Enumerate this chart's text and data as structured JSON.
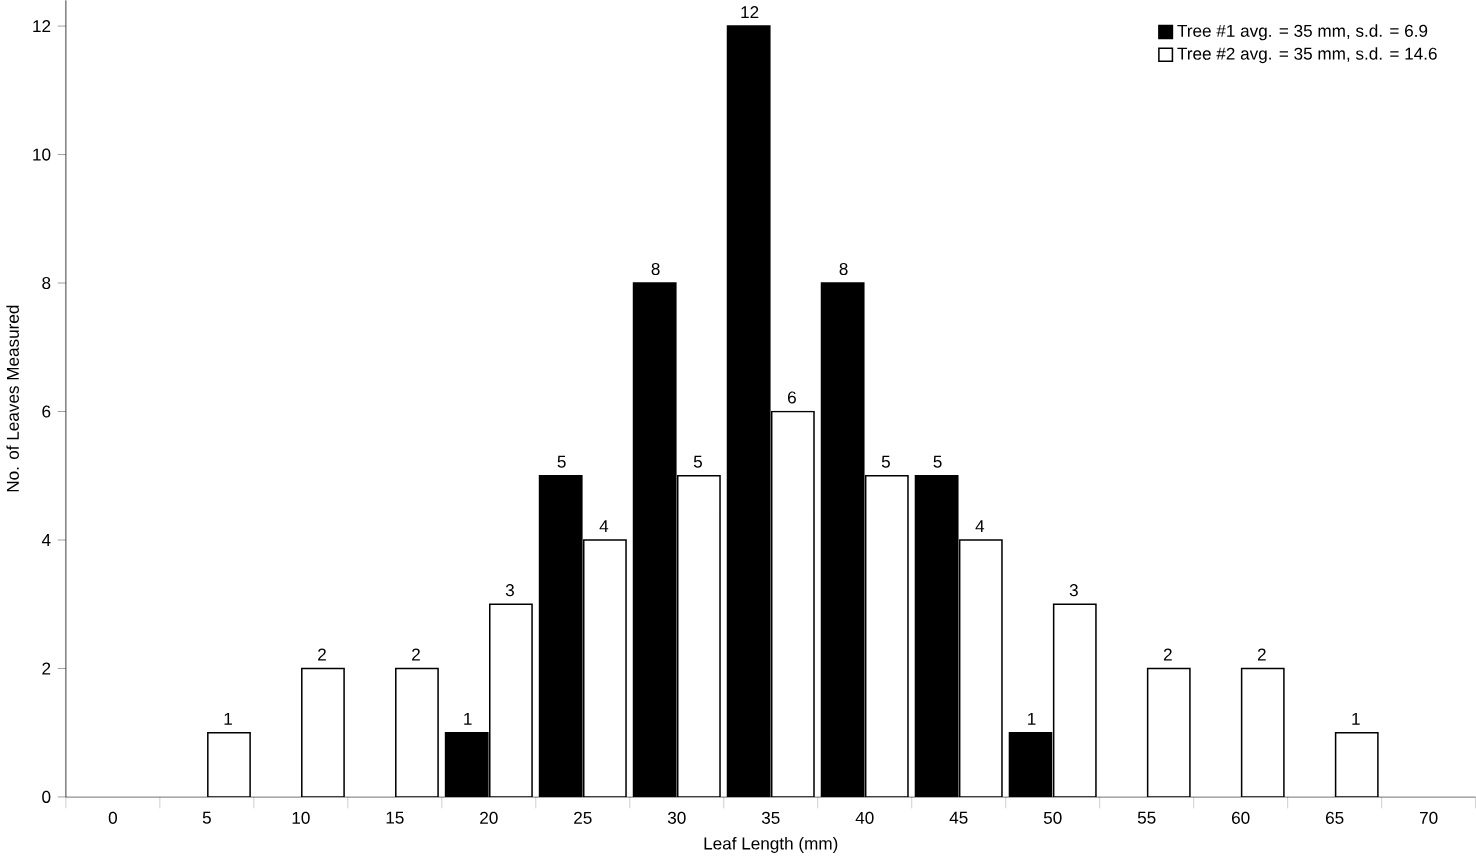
{
  "chart_data": {
    "type": "bar",
    "xlabel": "Leaf Length (mm)",
    "ylabel": "No. of Leaves Measured",
    "categories": [
      "0",
      "5",
      "10",
      "15",
      "20",
      "25",
      "30",
      "35",
      "40",
      "45",
      "50",
      "55",
      "60",
      "65",
      "70"
    ],
    "series": [
      {
        "name": "Tree #1 avg. = 35 mm, s.d. = 6.9",
        "color": "#000000",
        "values": [
          0,
          0,
          0,
          0,
          1,
          5,
          8,
          12,
          8,
          5,
          1,
          0,
          0,
          0,
          0
        ],
        "value_labels": [
          null,
          null,
          null,
          null,
          "1",
          "5",
          "8",
          "12",
          "8",
          "5",
          "1",
          null,
          null,
          null,
          null
        ]
      },
      {
        "name": "Tree #2 avg. = 35 mm, s.d. = 14.6",
        "color": "#ffffff",
        "values": [
          0,
          1,
          2,
          2,
          3,
          4,
          5,
          6,
          5,
          4,
          3,
          2,
          2,
          1,
          0
        ],
        "value_labels": [
          null,
          "1",
          "2",
          "2",
          "3",
          "4",
          "5",
          "6",
          "5",
          "4",
          "3",
          "2",
          "2",
          "1",
          null
        ]
      }
    ],
    "ylim": [
      0,
      12.4
    ],
    "yticks": [
      0,
      2,
      4,
      6,
      8,
      10,
      12
    ],
    "legend": "top right"
  }
}
